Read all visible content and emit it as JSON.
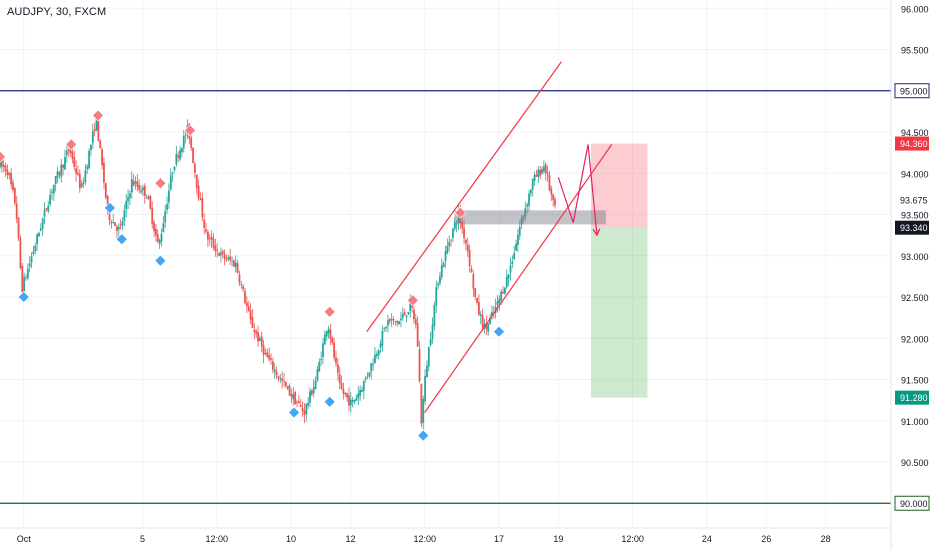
{
  "header": {
    "symbol_label": "AUDJPY, 30, FXCM"
  },
  "colors": {
    "up": "#26a69a",
    "down": "#ef5350",
    "blue_level": "#1a237e",
    "green_level": "#1b5e20",
    "channel": "#f23645",
    "arrow": "#e91e63",
    "price_badge_current": "#131722",
    "price_badge_stop": "#f23645",
    "price_badge_target": "#089981",
    "marker_high": "#f77c80",
    "marker_low": "#42a5f5"
  },
  "chart_data": {
    "type": "candlestick",
    "title": "AUDJPY, 30, FXCM",
    "ylim": [
      89.7,
      96.1
    ],
    "y_ticks": [
      "96.000",
      "95.500",
      "95.000",
      "94.500",
      "94.000",
      "93.500",
      "93.000",
      "92.500",
      "92.000",
      "91.500",
      "91.000",
      "90.500",
      "90.000"
    ],
    "x_ticks": [
      {
        "label": "Oct",
        "day": 1
      },
      {
        "label": "5",
        "day": 5
      },
      {
        "label": "12:00",
        "day": 7.5
      },
      {
        "label": "10",
        "day": 10
      },
      {
        "label": "12",
        "day": 12
      },
      {
        "label": "12:00",
        "day": 14.5
      },
      {
        "label": "17",
        "day": 17
      },
      {
        "label": "19",
        "day": 19
      },
      {
        "label": "12:00",
        "day": 21.5
      },
      {
        "label": "24",
        "day": 24
      },
      {
        "label": "26",
        "day": 26
      },
      {
        "label": "28",
        "day": 28
      }
    ],
    "x_range_days": [
      0.2,
      30.2
    ],
    "price_path": [
      [
        0.2,
        94.1
      ],
      [
        0.5,
        94.05
      ],
      [
        0.8,
        93.6
      ],
      [
        1.0,
        92.6
      ],
      [
        1.5,
        93.2
      ],
      [
        2.0,
        93.8
      ],
      [
        2.6,
        94.3
      ],
      [
        3.0,
        93.8
      ],
      [
        3.5,
        94.65
      ],
      [
        3.9,
        93.5
      ],
      [
        4.3,
        93.3
      ],
      [
        4.7,
        93.9
      ],
      [
        5.2,
        93.75
      ],
      [
        5.6,
        93.1
      ],
      [
        6.1,
        94.1
      ],
      [
        6.6,
        94.55
      ],
      [
        6.9,
        93.85
      ],
      [
        7.2,
        93.25
      ],
      [
        7.7,
        93.0
      ],
      [
        8.2,
        92.9
      ],
      [
        8.7,
        92.2
      ],
      [
        9.2,
        91.8
      ],
      [
        9.7,
        91.5
      ],
      [
        10.1,
        91.3
      ],
      [
        10.5,
        91.1
      ],
      [
        10.9,
        91.5
      ],
      [
        11.3,
        92.2
      ],
      [
        11.7,
        91.4
      ],
      [
        12.1,
        91.2
      ],
      [
        12.5,
        91.45
      ],
      [
        12.9,
        91.8
      ],
      [
        13.3,
        92.2
      ],
      [
        13.7,
        92.2
      ],
      [
        14.1,
        92.4
      ],
      [
        14.3,
        92.1
      ],
      [
        14.45,
        91.0
      ],
      [
        14.6,
        91.6
      ],
      [
        15.0,
        92.7
      ],
      [
        15.4,
        93.2
      ],
      [
        15.7,
        93.5
      ],
      [
        16.0,
        93.1
      ],
      [
        16.3,
        92.4
      ],
      [
        16.6,
        92.1
      ],
      [
        17.0,
        92.4
      ],
      [
        17.4,
        92.8
      ],
      [
        17.8,
        93.4
      ],
      [
        18.2,
        93.9
      ],
      [
        18.6,
        94.1
      ],
      [
        18.9,
        93.6
      ]
    ],
    "swing_highs": [
      {
        "day": 0.2,
        "price": 94.2
      },
      {
        "day": 2.6,
        "price": 94.35
      },
      {
        "day": 3.5,
        "price": 94.7
      },
      {
        "day": 5.6,
        "price": 93.88
      },
      {
        "day": 6.6,
        "price": 94.52
      },
      {
        "day": 11.3,
        "price": 92.32
      },
      {
        "day": 14.1,
        "price": 92.46
      },
      {
        "day": 15.7,
        "price": 93.52
      }
    ],
    "swing_lows": [
      {
        "day": 1.0,
        "price": 92.5
      },
      {
        "day": 3.9,
        "price": 93.58
      },
      {
        "day": 4.3,
        "price": 93.2
      },
      {
        "day": 5.6,
        "price": 92.94
      },
      {
        "day": 10.1,
        "price": 91.1
      },
      {
        "day": 11.3,
        "price": 91.23
      },
      {
        "day": 14.45,
        "price": 90.82
      },
      {
        "day": 17.0,
        "price": 92.08
      }
    ],
    "horizontal_levels": [
      {
        "name": "resistance",
        "price": 95.0,
        "label": "95.000"
      },
      {
        "name": "support",
        "price": 90.0,
        "label": "90.000"
      }
    ],
    "price_labels": [
      {
        "name": "stop-price",
        "price": 94.36,
        "label": "94.360",
        "style": "stop"
      },
      {
        "name": "last-price",
        "price": 93.675,
        "label": "93.675",
        "style": "plain"
      },
      {
        "name": "entry-price",
        "price": 93.34,
        "label": "93.340",
        "style": "current"
      },
      {
        "name": "target-price",
        "price": 91.28,
        "label": "91.280",
        "style": "target"
      }
    ],
    "channel": {
      "upper": [
        [
          12.55,
          92.08
        ],
        [
          19.1,
          95.35
        ]
      ],
      "lower": [
        [
          14.5,
          91.1
        ],
        [
          20.8,
          94.35
        ]
      ]
    },
    "zone": {
      "x1": 15.5,
      "x2": 20.6,
      "y1": 93.55,
      "y2": 93.38
    },
    "position": {
      "x1": 20.1,
      "x2": 22.0,
      "entry": 93.34,
      "stop": 94.36,
      "target": 91.28
    },
    "projection_arrow": [
      [
        19.0,
        93.95
      ],
      [
        19.5,
        93.4
      ],
      [
        20.0,
        94.35
      ],
      [
        20.3,
        93.25
      ]
    ]
  }
}
